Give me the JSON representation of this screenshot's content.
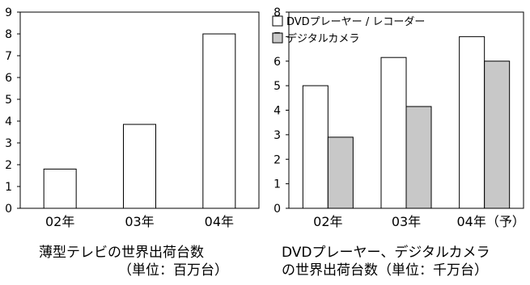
{
  "chart_data": [
    {
      "type": "bar",
      "categories": [
        "02年",
        "03年",
        "04年"
      ],
      "series": [
        {
          "values": [
            1.8,
            3.85,
            8.0
          ],
          "color": "#ffffff"
        }
      ],
      "ylim": [
        0,
        9
      ],
      "yticks": [
        0,
        1,
        2,
        3,
        4,
        5,
        6,
        7,
        8,
        9
      ],
      "grid": false,
      "title_lines": [
        "薄型テレビの世界出荷台数",
        "（単位：百万台）"
      ]
    },
    {
      "type": "bar",
      "categories": [
        "02年",
        "03年",
        "04年（予）"
      ],
      "series": [
        {
          "name": "DVDプレーヤー / レコーダー",
          "values": [
            5.0,
            6.15,
            7.0
          ],
          "color": "#ffffff"
        },
        {
          "name": "デジタルカメラ",
          "values": [
            2.9,
            4.15,
            6.0
          ],
          "color": "#c8c8c8"
        }
      ],
      "ylim": [
        0,
        8
      ],
      "yticks": [
        0,
        1,
        2,
        3,
        4,
        5,
        6,
        7,
        8
      ],
      "grid": false,
      "legend": "top-left",
      "title_lines": [
        "DVDプレーヤー、デジタルカメラ",
        "の世界出荷台数（単位：千万台）"
      ]
    }
  ]
}
